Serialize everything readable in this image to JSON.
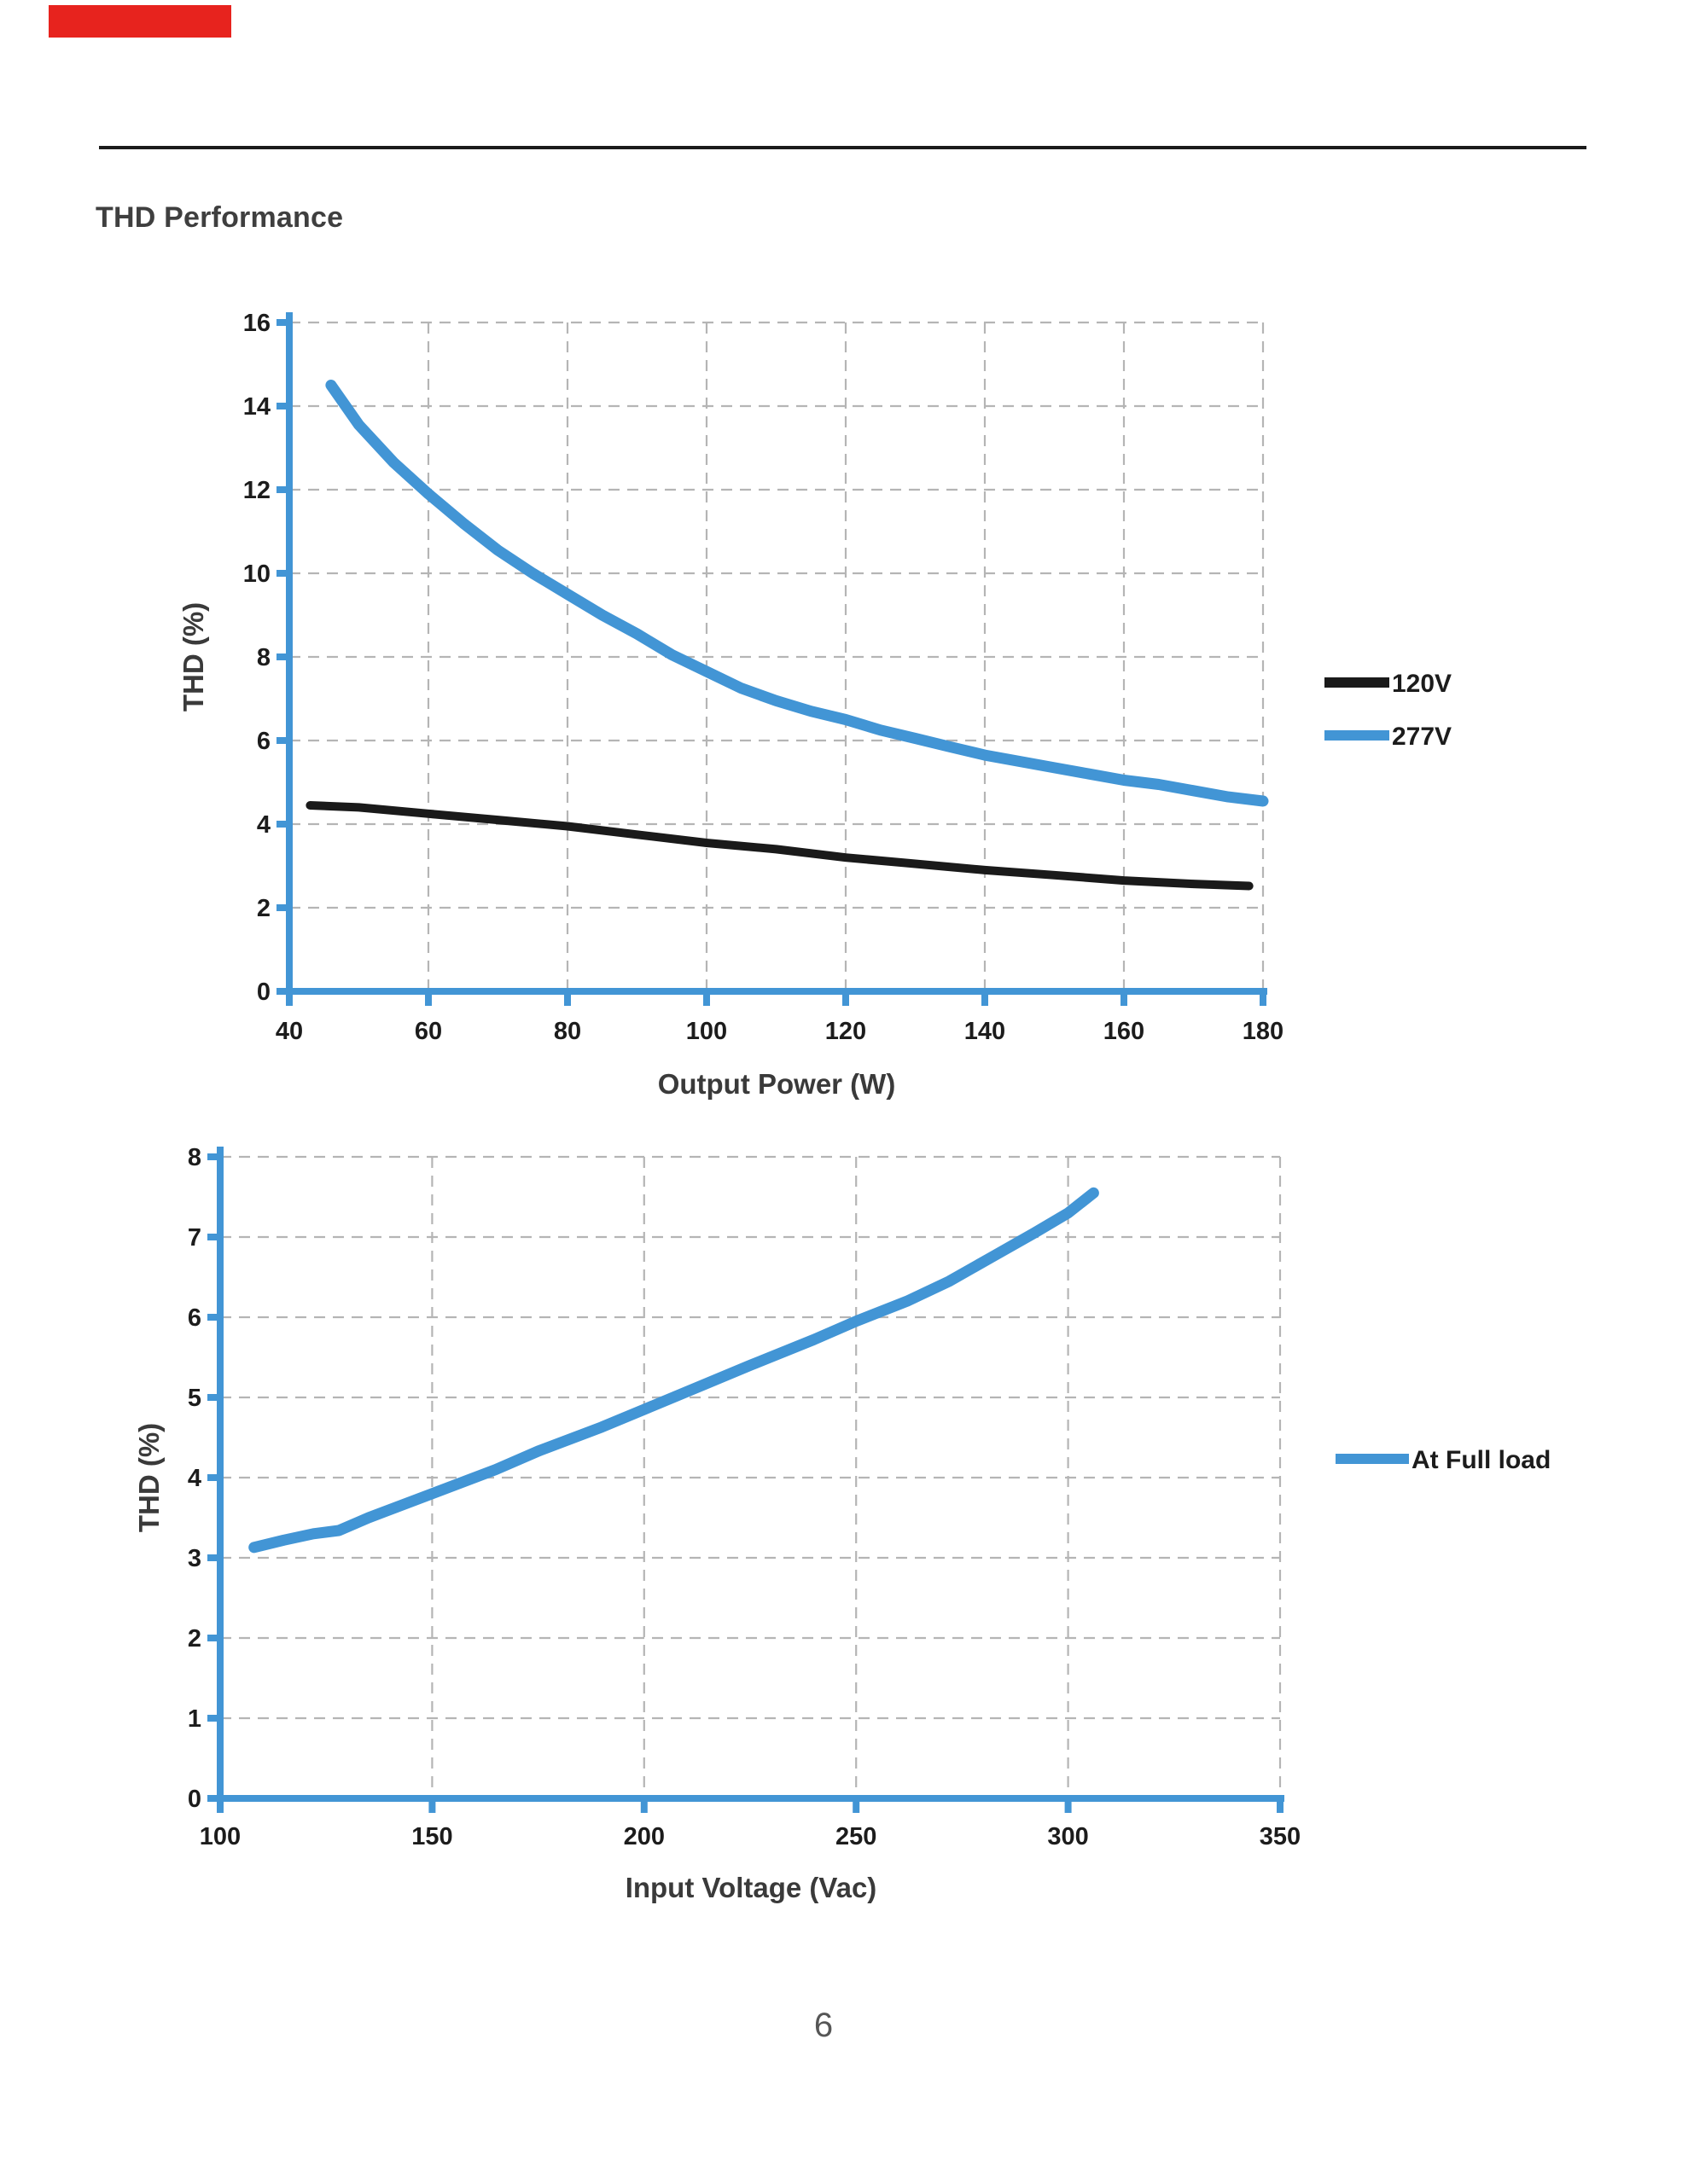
{
  "page": {
    "heading": "THD Performance",
    "page_number": "6",
    "red_bar_color": "#e7231e",
    "rule_color": "#1b1b1b"
  },
  "colors": {
    "accent_blue": "#4295d5",
    "series_black": "#1a1a1a",
    "gridline_gray": "#b5b5b5",
    "tick_label": "#1c1c1c",
    "axis_title": "#3a3a3a"
  },
  "chart_data": [
    {
      "id": "thd_vs_output_power",
      "type": "line",
      "title": "",
      "xlabel": "Output Power (W)",
      "ylabel": "THD (%)",
      "xlim": [
        40,
        180
      ],
      "ylim": [
        0,
        16
      ],
      "x_ticks": [
        40,
        60,
        80,
        100,
        120,
        140,
        160,
        180
      ],
      "y_ticks": [
        0,
        2,
        4,
        6,
        8,
        10,
        12,
        14,
        16
      ],
      "grid": "dashed",
      "legend_position": "right",
      "series": [
        {
          "name": "120V",
          "color": "#1a1a1a",
          "stroke_width": 10,
          "points": [
            [
              43,
              4.45
            ],
            [
              50,
              4.4
            ],
            [
              60,
              4.25
            ],
            [
              70,
              4.1
            ],
            [
              80,
              3.95
            ],
            [
              90,
              3.75
            ],
            [
              100,
              3.55
            ],
            [
              110,
              3.4
            ],
            [
              120,
              3.2
            ],
            [
              130,
              3.05
            ],
            [
              140,
              2.9
            ],
            [
              150,
              2.78
            ],
            [
              160,
              2.65
            ],
            [
              170,
              2.57
            ],
            [
              178,
              2.52
            ]
          ]
        },
        {
          "name": "277V",
          "color": "#4295d5",
          "stroke_width": 13,
          "points": [
            [
              46,
              14.5
            ],
            [
              50,
              13.55
            ],
            [
              55,
              12.65
            ],
            [
              60,
              11.9
            ],
            [
              65,
              11.2
            ],
            [
              70,
              10.55
            ],
            [
              75,
              10.0
            ],
            [
              80,
              9.5
            ],
            [
              85,
              9.0
            ],
            [
              90,
              8.55
            ],
            [
              95,
              8.05
            ],
            [
              100,
              7.65
            ],
            [
              105,
              7.25
            ],
            [
              110,
              6.95
            ],
            [
              115,
              6.7
            ],
            [
              120,
              6.5
            ],
            [
              125,
              6.25
            ],
            [
              130,
              6.05
            ],
            [
              135,
              5.85
            ],
            [
              140,
              5.65
            ],
            [
              145,
              5.5
            ],
            [
              150,
              5.35
            ],
            [
              155,
              5.2
            ],
            [
              160,
              5.05
            ],
            [
              165,
              4.95
            ],
            [
              170,
              4.8
            ],
            [
              175,
              4.65
            ],
            [
              180,
              4.55
            ]
          ]
        }
      ]
    },
    {
      "id": "thd_vs_input_voltage",
      "type": "line",
      "title": "",
      "xlabel": "Input Voltage (Vac)",
      "ylabel": "THD (%)",
      "xlim": [
        100,
        350
      ],
      "ylim": [
        0,
        8
      ],
      "x_ticks": [
        100,
        150,
        200,
        250,
        300,
        350
      ],
      "y_ticks": [
        0,
        1,
        2,
        3,
        4,
        5,
        6,
        7,
        8
      ],
      "grid": "dashed",
      "legend_position": "right",
      "series": [
        {
          "name": "At Full load",
          "color": "#4295d5",
          "stroke_width": 13,
          "points": [
            [
              108,
              3.13
            ],
            [
              115,
              3.22
            ],
            [
              122,
              3.3
            ],
            [
              128,
              3.34
            ],
            [
              135,
              3.5
            ],
            [
              150,
              3.8
            ],
            [
              165,
              4.1
            ],
            [
              175,
              4.33
            ],
            [
              190,
              4.63
            ],
            [
              200,
              4.85
            ],
            [
              215,
              5.18
            ],
            [
              225,
              5.4
            ],
            [
              240,
              5.72
            ],
            [
              250,
              5.95
            ],
            [
              262,
              6.2
            ],
            [
              272,
              6.45
            ],
            [
              282,
              6.75
            ],
            [
              292,
              7.05
            ],
            [
              300,
              7.3
            ],
            [
              306,
              7.55
            ]
          ]
        }
      ]
    }
  ]
}
